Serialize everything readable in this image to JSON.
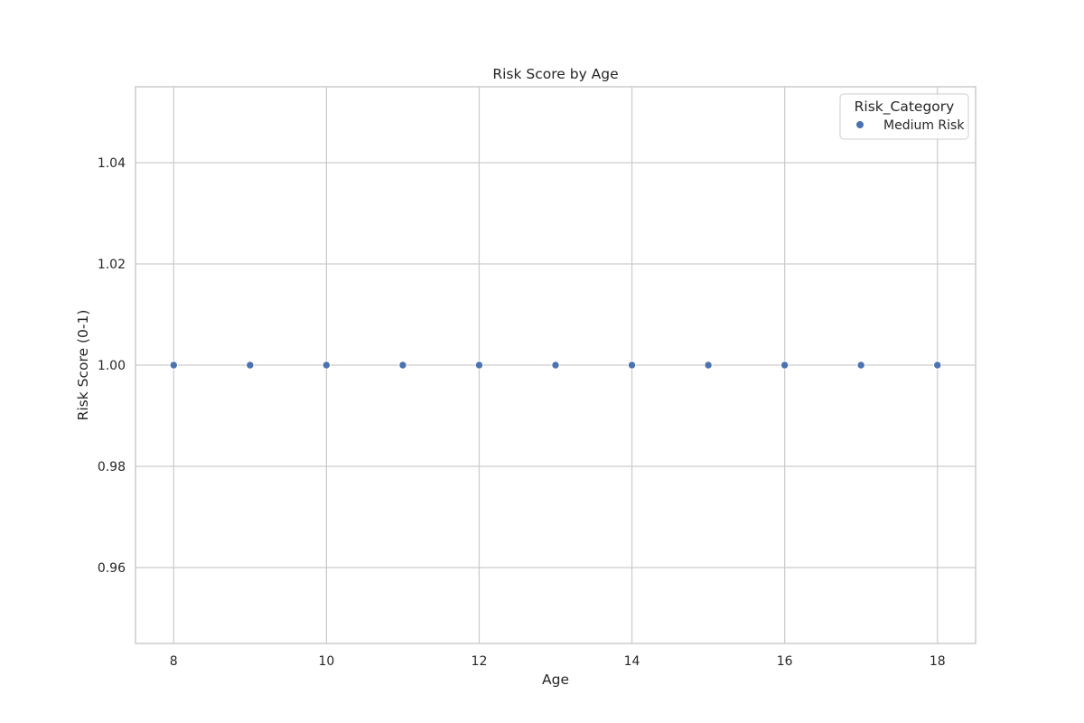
{
  "chart_data": {
    "type": "scatter",
    "title": "Risk Score by Age",
    "xlabel": "Age",
    "ylabel": "Risk Score (0-1)",
    "xlim": [
      7.5,
      18.5
    ],
    "ylim": [
      0.945,
      1.055
    ],
    "x_ticks": [
      8,
      10,
      12,
      14,
      16,
      18
    ],
    "x_tick_labels": [
      "8",
      "10",
      "12",
      "14",
      "16",
      "18"
    ],
    "y_ticks": [
      0.96,
      0.98,
      1.0,
      1.02,
      1.04
    ],
    "y_tick_labels": [
      "0.96",
      "0.98",
      "1.00",
      "1.02",
      "1.04"
    ],
    "grid": true,
    "legend": {
      "title": "Risk_Category",
      "placement": "top-right",
      "entries": [
        "Medium Risk"
      ]
    },
    "series": [
      {
        "name": "Medium Risk",
        "color": "#4c72b0",
        "x": [
          8,
          9,
          10,
          11,
          12,
          13,
          14,
          15,
          16,
          17,
          18
        ],
        "y": [
          1.0,
          1.0,
          1.0,
          1.0,
          1.0,
          1.0,
          1.0,
          1.0,
          1.0,
          1.0,
          1.0
        ]
      }
    ]
  }
}
